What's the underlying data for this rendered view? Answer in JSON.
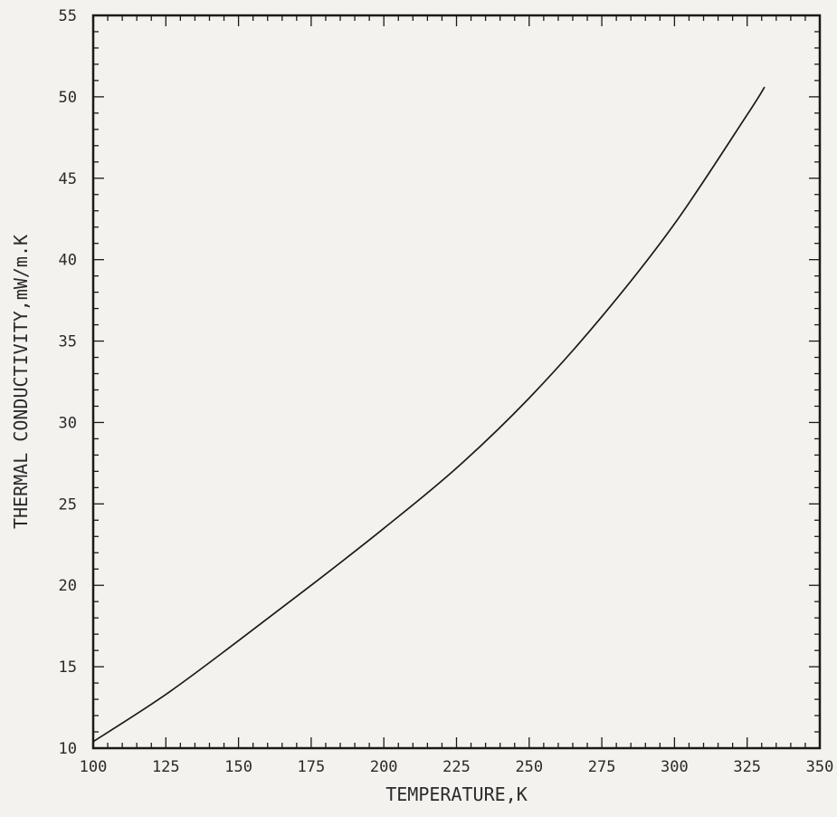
{
  "chart_data": {
    "type": "line",
    "title": "",
    "xlabel": "TEMPERATURE,K",
    "ylabel": "THERMAL CONDUCTIVITY,mW/m.K",
    "xlim": [
      100,
      350
    ],
    "ylim": [
      10,
      55
    ],
    "x_ticks": [
      100,
      125,
      150,
      175,
      200,
      225,
      250,
      275,
      300,
      325,
      350
    ],
    "y_ticks": [
      10,
      15,
      20,
      25,
      30,
      35,
      40,
      45,
      50,
      55
    ],
    "grid": false,
    "series": [
      {
        "x": [
          100,
          125,
          150,
          175,
          200,
          225,
          250,
          275,
          300,
          325,
          331
        ],
        "y": [
          10.4,
          13.3,
          16.6,
          20.0,
          23.5,
          27.2,
          31.5,
          36.5,
          42.2,
          48.9,
          50.6
        ]
      }
    ],
    "colors": {
      "line": "#1a1a1a",
      "axes": "#1a1a1a",
      "background": "#f4f2ee"
    }
  }
}
